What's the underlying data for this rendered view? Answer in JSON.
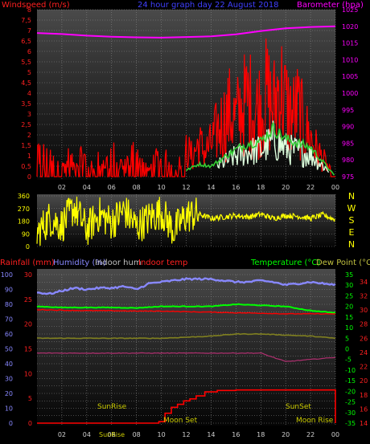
{
  "header": {
    "left_label": "Windspeed (m/s)",
    "center_label": "24 hour graph day   22 August 2018",
    "right_label": "Barometer (hpa)"
  },
  "colors": {
    "background": "#000000",
    "panel_gradient_top": "#4a4a4a",
    "panel_gradient_bottom": "#050505",
    "grid": "#888888",
    "wind_speed": "#ff0000",
    "wind_gust": "#33cc33",
    "wind_light": "#ddffdd",
    "barometer": "#ff00ff",
    "wind_direction": "#ffff00",
    "rainfall": "#ff0000",
    "humidity": "#8888ff",
    "indoor_hum": "#c0c0c0",
    "indoor_temp": "#ff0000",
    "temperature": "#00ff00",
    "dew_point": "#808020",
    "extra_line": "#b03070",
    "sun_moon_text": "#cccc00"
  },
  "chart_data": [
    {
      "type": "line",
      "panel": "wind_barometer",
      "x_ticks": [
        "02",
        "04",
        "06",
        "08",
        "10",
        "12",
        "14",
        "16",
        "18",
        "20",
        "22",
        "00"
      ],
      "x_range_hours": [
        0,
        24
      ],
      "left_axis": {
        "label": "Windspeed (m/s)",
        "range": [
          0,
          8
        ],
        "ticks": [
          "0",
          "0,5",
          "1",
          "1,5",
          "2",
          "2,5",
          "3",
          "3,5",
          "4",
          "4,5",
          "5",
          "5,5",
          "6",
          "6,5",
          "7",
          "7,5",
          "8"
        ]
      },
      "right_axis": {
        "label": "Barometer (hpa)",
        "range": [
          975,
          1025
        ],
        "ticks": [
          "975",
          "980",
          "985",
          "990",
          "995",
          "1000",
          "1005",
          "1010",
          "1015",
          "1020",
          "1025"
        ]
      },
      "series": [
        {
          "name": "wind_speed",
          "hours": [
            0,
            0.5,
            1,
            1.5,
            2,
            2.5,
            3,
            3.5,
            4,
            4.5,
            5,
            5.5,
            6,
            6.5,
            7,
            7.5,
            8,
            8.5,
            9,
            9.5,
            10,
            10.5,
            11,
            11.5,
            12,
            12.5,
            13,
            13.5,
            14,
            14.5,
            15,
            15.5,
            16,
            16.5,
            17,
            17.5,
            18,
            18.5,
            19,
            19.5,
            20,
            20.5,
            21,
            21.5,
            22,
            22.5,
            23,
            23.5,
            24
          ],
          "values": [
            1.5,
            1.2,
            0.8,
            1.3,
            0.5,
            1.0,
            0.6,
            1.2,
            0.9,
            0.4,
            1.1,
            0.7,
            1.3,
            0.9,
            0.5,
            1.2,
            1.4,
            0.8,
            0.3,
            1.0,
            0.6,
            1.2,
            0.2,
            0.8,
            1.6,
            1.1,
            1.9,
            1.4,
            1.8,
            2.6,
            3.1,
            3.6,
            3.2,
            3.9,
            4.3,
            3.7,
            4.0,
            4.6,
            3.8,
            5.2,
            4.1,
            3.4,
            3.8,
            2.7,
            2.2,
            1.5,
            1.0,
            0.4,
            0.0
          ]
        },
        {
          "name": "wind_gust",
          "hours": [
            12,
            13,
            14,
            15,
            16,
            17,
            18,
            19,
            20,
            21,
            22,
            23,
            24
          ],
          "values": [
            0.3,
            0.6,
            0.5,
            0.9,
            1.3,
            1.6,
            1.7,
            2.3,
            1.8,
            1.6,
            1.4,
            0.7,
            0.0
          ]
        },
        {
          "name": "barometer",
          "hours": [
            0,
            2,
            4,
            6,
            8,
            10,
            12,
            14,
            16,
            18,
            20,
            22,
            24
          ],
          "values": [
            1018,
            1017.7,
            1017.2,
            1016.9,
            1016.7,
            1016.6,
            1016.8,
            1017.0,
            1017.6,
            1018.6,
            1019.4,
            1019.8,
            1020.0
          ]
        }
      ]
    },
    {
      "type": "line",
      "panel": "wind_direction",
      "x_range_hours": [
        0,
        24
      ],
      "left_axis": {
        "range": [
          0,
          360
        ],
        "ticks": [
          "0",
          "90",
          "180",
          "270",
          "360"
        ]
      },
      "right_axis": {
        "labels": [
          "N",
          "W",
          "S",
          "E",
          "N"
        ]
      },
      "series": [
        {
          "name": "wind_direction",
          "hours": [
            0,
            1,
            2,
            3,
            4,
            5,
            6,
            7,
            8,
            9,
            10,
            11,
            12,
            13,
            14,
            15,
            16,
            17,
            18,
            19,
            20,
            21,
            22,
            23,
            24
          ],
          "values": [
            90,
            200,
            150,
            280,
            120,
            230,
            170,
            260,
            140,
            200,
            250,
            110,
            220,
            230,
            200,
            210,
            220,
            210,
            230,
            200,
            220,
            215,
            200,
            225,
            190
          ]
        }
      ]
    },
    {
      "type": "line",
      "panel": "temperature_humidity_rain",
      "x_ticks": [
        "02",
        "04",
        "06",
        "08",
        "10",
        "12",
        "14",
        "16",
        "18",
        "20",
        "22",
        "00"
      ],
      "x_range_hours": [
        0,
        24
      ],
      "legend": {
        "rainfall": "Rainfall (mm)",
        "humidity": "Humidity (%)",
        "indoor_hum": "Indoor hum",
        "indoor_temp": "Indoor temp",
        "temperature": "Temperature (°C)",
        "dew_point": "Dew Point (°C)"
      },
      "humidity_axis": {
        "range": [
          0,
          100
        ],
        "ticks": [
          "0",
          "5",
          "10",
          "15",
          "20",
          "25",
          "30",
          "35",
          "40",
          "45",
          "50",
          "55",
          "60",
          "65",
          "70",
          "75",
          "80",
          "85",
          "90",
          "95",
          "100"
        ]
      },
      "rain_axis": {
        "range": [
          0,
          30
        ],
        "ticks": [
          "0",
          "5",
          "10",
          "15",
          "20",
          "25",
          "30"
        ]
      },
      "temp_axis": {
        "range": [
          -35,
          35
        ],
        "ticks": [
          "-35",
          "-30",
          "-25",
          "-20",
          "-15",
          "-10",
          "-5",
          "0",
          "5",
          "10",
          "15",
          "20",
          "25",
          "30",
          "35"
        ]
      },
      "dew_axis": {
        "range": [
          14,
          35
        ],
        "ticks": [
          "14",
          "16",
          "18",
          "20",
          "22",
          "24",
          "26",
          "28",
          "30",
          "32",
          "34"
        ]
      },
      "series": [
        {
          "name": "humidity",
          "hours": [
            0,
            1,
            2,
            3,
            4,
            5,
            6,
            7,
            8,
            9,
            10,
            11,
            12,
            13,
            14,
            15,
            16,
            17,
            18,
            19,
            20,
            21,
            22,
            23,
            24
          ],
          "values": [
            88,
            87,
            89,
            91,
            90,
            91,
            91,
            92,
            90,
            94,
            95,
            96,
            97,
            97,
            97,
            96,
            95,
            95,
            96,
            95,
            93,
            94,
            95,
            94,
            93
          ]
        },
        {
          "name": "temperature",
          "hours": [
            0,
            2,
            4,
            6,
            8,
            10,
            12,
            14,
            16,
            18,
            20,
            22,
            24
          ],
          "values": [
            20,
            19.5,
            19.5,
            19.5,
            19.3,
            20,
            20,
            20,
            21,
            20.5,
            20,
            18,
            17
          ]
        },
        {
          "name": "indoor_temp",
          "hours": [
            0,
            2,
            4,
            6,
            8,
            10,
            12,
            14,
            16,
            18,
            20,
            22,
            24
          ],
          "values": [
            18.5,
            18.2,
            18,
            18,
            17.8,
            17.8,
            17.5,
            17.3,
            17,
            16.8,
            16.5,
            16.5,
            16.5
          ]
        },
        {
          "name": "dew_point",
          "hours": [
            0,
            2,
            4,
            6,
            8,
            10,
            12,
            14,
            16,
            18,
            20,
            22,
            24
          ],
          "values": [
            5,
            5,
            5,
            5,
            5,
            5,
            5.5,
            6,
            7,
            7,
            6.5,
            6,
            5
          ]
        },
        {
          "name": "indoor_hum",
          "hours": [
            0,
            6,
            12,
            18,
            20,
            22,
            24
          ],
          "values": [
            -2,
            -2,
            -2,
            -2,
            -6,
            -5,
            -4
          ]
        },
        {
          "name": "rainfall",
          "hours": [
            0,
            9,
            9.8,
            10.3,
            10.8,
            11.3,
            11.8,
            12.3,
            12.8,
            13.5,
            14.5,
            16,
            23.9,
            24
          ],
          "values": [
            0,
            0,
            0.3,
            2,
            3.2,
            3.8,
            4.5,
            4.9,
            5.5,
            6.3,
            6.6,
            6.7,
            6.7,
            0
          ]
        }
      ],
      "events": {
        "sunrise_label": "SunRise",
        "sunset_label": "SunSet",
        "moonset_label": "Moon Set",
        "moonrise_label": "Moon Rise",
        "bottom_text": "SunRise"
      }
    }
  ]
}
